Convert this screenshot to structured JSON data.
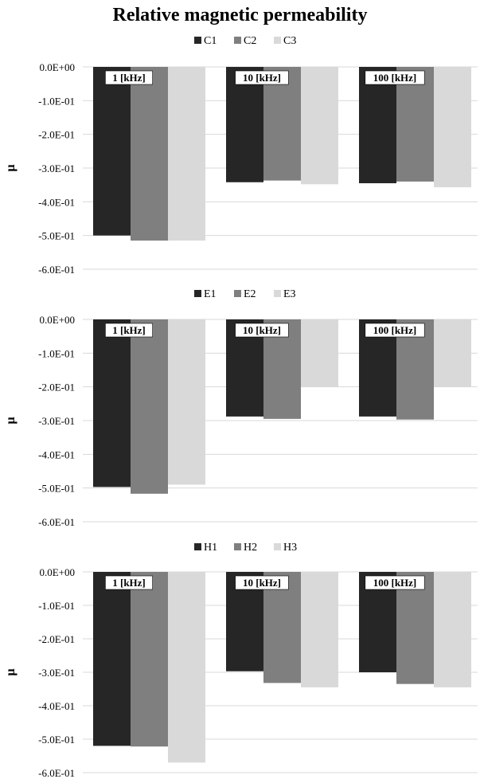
{
  "title": "Relative magnetic permeability",
  "colors": {
    "series1": "#262626",
    "series2": "#7f7f7f",
    "series3": "#d9d9d9",
    "grid": "#d9d9d9"
  },
  "chart_data": [
    {
      "type": "bar",
      "title": "Relative magnetic permeability",
      "ylabel": "μ",
      "ylim": [
        -0.6,
        0
      ],
      "yticks": [
        "0.0E+00",
        "-1.0E-01",
        "-2.0E-01",
        "-3.0E-01",
        "-4.0E-01",
        "-5.0E-01",
        "-6.0E-01"
      ],
      "categories": [
        "1 [kHz]",
        "10 [kHz]",
        "100 [kHz]"
      ],
      "legend_position": "top-center",
      "grid": true,
      "series": [
        {
          "name": "C1",
          "values": [
            -0.5,
            -0.342,
            -0.345
          ]
        },
        {
          "name": "C2",
          "values": [
            -0.515,
            -0.337,
            -0.34
          ]
        },
        {
          "name": "C3",
          "values": [
            -0.515,
            -0.348,
            -0.357
          ]
        }
      ]
    },
    {
      "type": "bar",
      "ylabel": "μ",
      "ylim": [
        -0.6,
        0
      ],
      "yticks": [
        "0.0E+00",
        "-1.0E-01",
        "-2.0E-01",
        "-3.0E-01",
        "-4.0E-01",
        "-5.0E-01",
        "-6.0E-01"
      ],
      "categories": [
        "1 [kHz]",
        "10 [kHz]",
        "100 [kHz]"
      ],
      "legend_position": "top-center",
      "grid": true,
      "series": [
        {
          "name": "E1",
          "values": [
            -0.497,
            -0.288,
            -0.288
          ]
        },
        {
          "name": "E2",
          "values": [
            -0.517,
            -0.295,
            -0.297
          ]
        },
        {
          "name": "E3",
          "values": [
            -0.49,
            -0.2,
            -0.2
          ]
        }
      ]
    },
    {
      "type": "bar",
      "ylabel": "μ",
      "ylim": [
        -0.6,
        0
      ],
      "yticks": [
        "0.0E+00",
        "-1.0E-01",
        "-2.0E-01",
        "-3.0E-01",
        "-4.0E-01",
        "-5.0E-01",
        "-6.0E-01"
      ],
      "categories": [
        "1 [kHz]",
        "10 [kHz]",
        "100 [kHz]"
      ],
      "legend_position": "top-center",
      "grid": true,
      "series": [
        {
          "name": "H1",
          "values": [
            -0.52,
            -0.297,
            -0.3
          ]
        },
        {
          "name": "H2",
          "values": [
            -0.522,
            -0.332,
            -0.335
          ]
        },
        {
          "name": "H3",
          "values": [
            -0.57,
            -0.345,
            -0.345
          ]
        }
      ]
    }
  ]
}
